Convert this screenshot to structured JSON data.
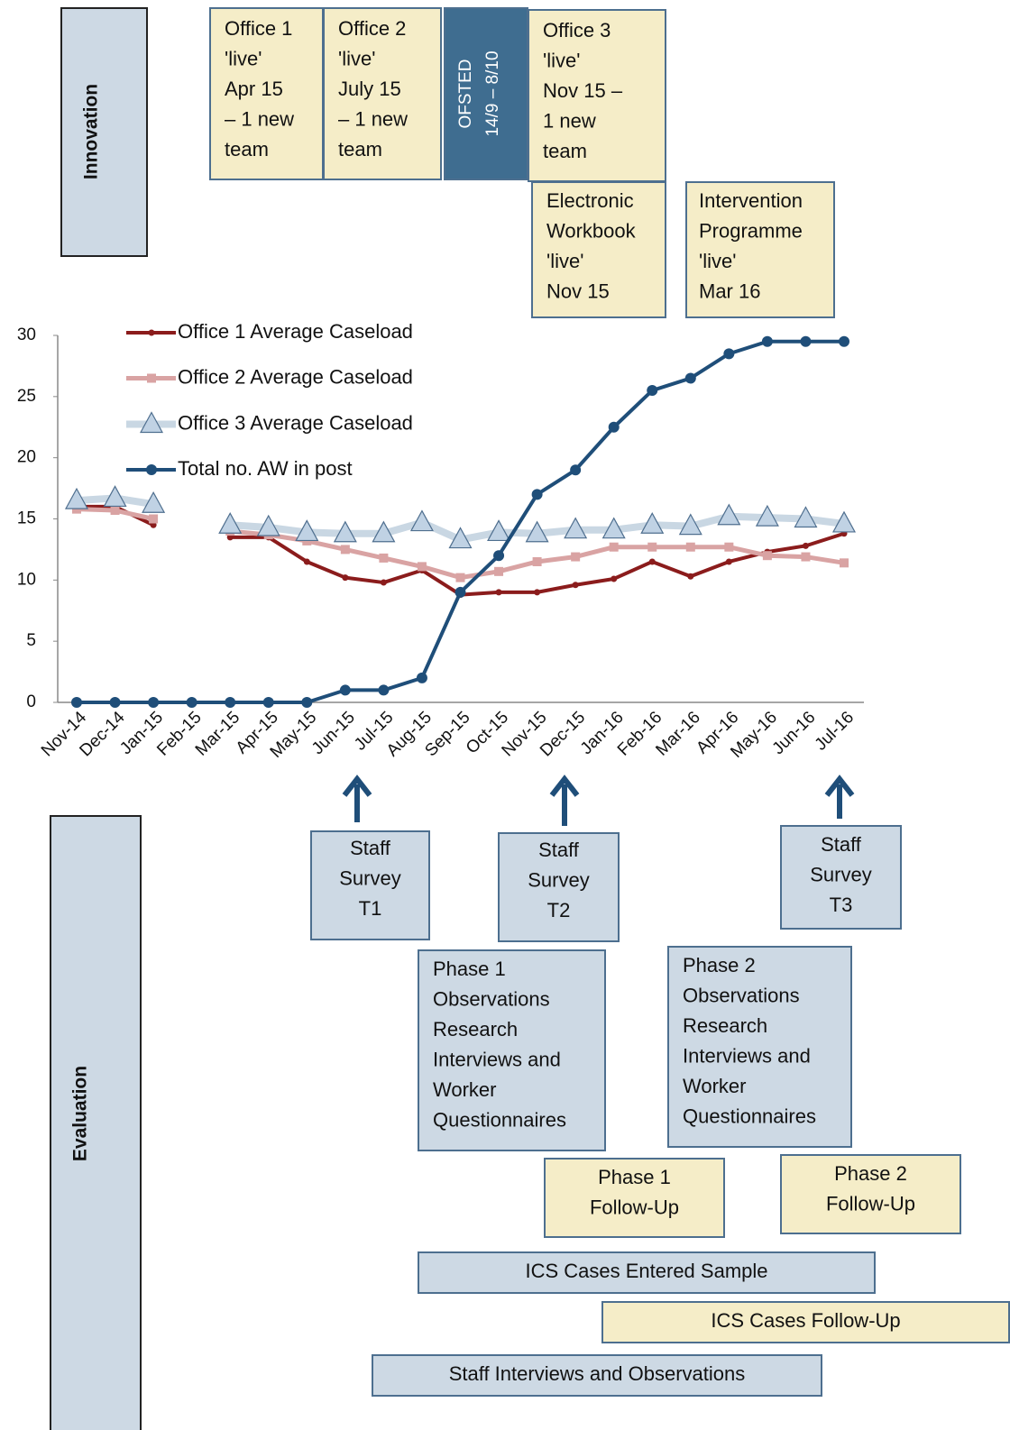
{
  "innovation": {
    "label": "Innovation",
    "boxes": [
      {
        "lines": [
          "Office 1",
          "'live'",
          "Apr 15",
          "– 1 new",
          "team"
        ]
      },
      {
        "lines": [
          "Office 2",
          "'live'",
          "July 15",
          "– 1 new",
          "team"
        ]
      },
      {
        "lines": [
          "OFSTED",
          "14/9 – 8/10"
        ]
      },
      {
        "lines": [
          "Office 3",
          "'live'",
          "Nov 15 –",
          "1 new",
          "team"
        ]
      },
      {
        "lines": [
          "Electronic",
          "Workbook",
          "'live'",
          "Nov 15"
        ]
      },
      {
        "lines": [
          "Intervention",
          "Programme",
          "'live'",
          "Mar 16"
        ]
      }
    ]
  },
  "chart_data": {
    "type": "line",
    "categories": [
      "Nov-14",
      "Dec-14",
      "Jan-15",
      "Feb-15",
      "Mar-15",
      "Apr-15",
      "May-15",
      "Jun-15",
      "Jul-15",
      "Aug-15",
      "Sep-15",
      "Oct-15",
      "Nov-15",
      "Dec-15",
      "Jan-16",
      "Feb-16",
      "Mar-16",
      "Apr-16",
      "May-16",
      "Jun-16",
      "Jul-16"
    ],
    "series": [
      {
        "name": "Office 1 Average Caseload",
        "color": "#8b1c1c",
        "values": [
          16,
          16,
          14.5,
          null,
          13.5,
          13.5,
          11.5,
          10.2,
          9.8,
          10.8,
          8.8,
          9,
          9,
          9.6,
          10.1,
          11.5,
          10.3,
          11.5,
          12.3,
          12.8,
          13.8
        ]
      },
      {
        "name": "Office 2 Average Caseload",
        "color": "#d9a3a3",
        "values": [
          15.8,
          15.7,
          15,
          null,
          14,
          13.7,
          13.2,
          12.5,
          11.8,
          11.1,
          10.2,
          10.7,
          11.5,
          11.9,
          12.7,
          12.7,
          12.7,
          12.7,
          12,
          11.9,
          11.4
        ]
      },
      {
        "name": "Office 3 Average Caseload",
        "color": "#c9d7e3",
        "values": [
          16.5,
          16.7,
          16.2,
          null,
          14.5,
          14.3,
          13.9,
          13.8,
          13.8,
          14.7,
          13.3,
          13.9,
          13.8,
          14.1,
          14.1,
          14.5,
          14.4,
          15.2,
          15.1,
          15,
          14.6
        ]
      },
      {
        "name": "Total no. AW in post",
        "color": "#1f4e79",
        "values": [
          0,
          0,
          0,
          0,
          0,
          0,
          0,
          1,
          1,
          2,
          9,
          12,
          17,
          19,
          22.5,
          25.5,
          26.5,
          28.5,
          29.5,
          29.5,
          29.5
        ]
      }
    ],
    "ylim": [
      0,
      30
    ],
    "yticks": [
      0,
      5,
      10,
      15,
      20,
      25,
      30
    ],
    "grid": false,
    "legend": "upper left"
  },
  "evaluation": {
    "label": "Evaluation",
    "boxes": [
      {
        "lines": [
          "Staff",
          "Survey",
          "T1"
        ]
      },
      {
        "lines": [
          "Staff",
          "Survey",
          "T2"
        ]
      },
      {
        "lines": [
          "Staff",
          "Survey",
          "T3"
        ]
      },
      {
        "lines": [
          "Phase 1",
          "Observations",
          "Research",
          "Interviews and",
          "Worker",
          "Questionnaires"
        ]
      },
      {
        "lines": [
          "Phase 2",
          "Observations",
          "Research",
          "Interviews and",
          "Worker",
          "Questionnaires"
        ]
      },
      {
        "lines": [
          "Phase 1",
          "Follow-Up"
        ]
      },
      {
        "lines": [
          "Phase 2",
          "Follow-Up"
        ]
      },
      {
        "lines": [
          "ICS Cases Entered Sample"
        ]
      },
      {
        "lines": [
          "ICS Cases Follow-Up"
        ]
      },
      {
        "lines": [
          "Staff Interviews and Observations"
        ]
      }
    ]
  }
}
